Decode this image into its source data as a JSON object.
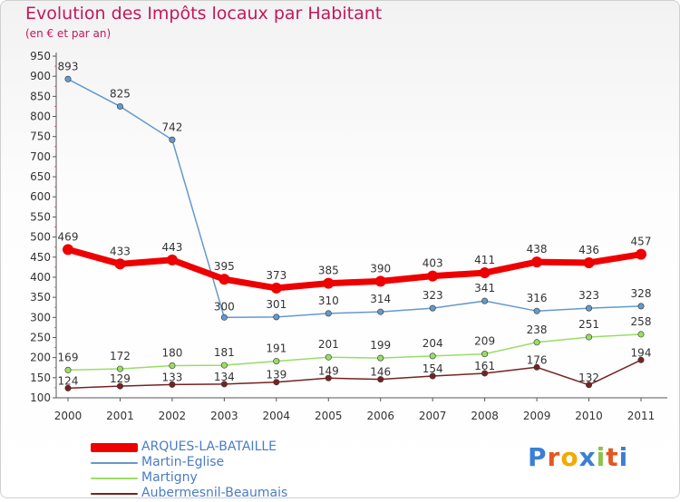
{
  "page": {
    "title": "Evolution des Impôts locaux par Habitant",
    "subtitle": "(en € et par an)",
    "brand": "Proxiti"
  },
  "chart_data": {
    "type": "line",
    "title": "Evolution des Impôts locaux par Habitant",
    "subtitle": "(en € et par an)",
    "x": [
      "2000",
      "2001",
      "2002",
      "2003",
      "2004",
      "2005",
      "2006",
      "2007",
      "2008",
      "2009",
      "2010",
      "2011"
    ],
    "ylim": [
      100,
      950
    ],
    "yticks": [
      100,
      150,
      200,
      250,
      300,
      350,
      400,
      450,
      500,
      550,
      600,
      650,
      700,
      750,
      800,
      850,
      900,
      950
    ],
    "grid": false,
    "legend_position": "bottom-left",
    "series": [
      {
        "name": "ARQUES-LA-BATAILLE",
        "color": "#ee0000",
        "values": [
          469,
          433,
          443,
          395,
          373,
          385,
          390,
          403,
          411,
          438,
          436,
          457
        ]
      },
      {
        "name": "Martin-Eglise",
        "color": "#6699cc",
        "values": [
          893,
          825,
          742,
          300,
          301,
          310,
          314,
          323,
          341,
          316,
          323,
          328
        ]
      },
      {
        "name": "Martigny",
        "color": "#99dd66",
        "values": [
          169,
          172,
          180,
          181,
          191,
          201,
          199,
          204,
          209,
          238,
          251,
          258
        ]
      },
      {
        "name": "Aubermesnil-Beaumais",
        "color": "#772222",
        "values": [
          124,
          129,
          133,
          134,
          139,
          149,
          146,
          154,
          161,
          176,
          132,
          194
        ]
      }
    ]
  }
}
